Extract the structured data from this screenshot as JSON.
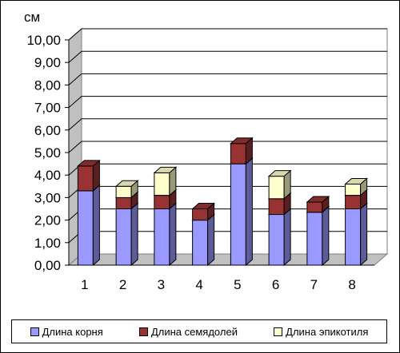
{
  "chart_data": {
    "type": "bar",
    "stacked": true,
    "three_d": true,
    "unit_label": "см",
    "categories": [
      "1",
      "2",
      "3",
      "4",
      "5",
      "6",
      "7",
      "8"
    ],
    "series": [
      {
        "name": "Длина корня",
        "color": "#9999ff",
        "values": [
          3.3,
          2.5,
          2.5,
          2.0,
          4.5,
          2.25,
          2.35,
          2.5
        ]
      },
      {
        "name": "Длина семядолей",
        "color": "#993333",
        "values": [
          1.1,
          0.5,
          0.6,
          0.5,
          0.9,
          0.7,
          0.45,
          0.6
        ]
      },
      {
        "name": "Длина эпикотиля",
        "color": "#ffffcc",
        "values": [
          0.0,
          0.5,
          1.0,
          0.0,
          0.0,
          1.0,
          0.0,
          0.5
        ]
      }
    ],
    "y_ticks": [
      "0,00",
      "1,00",
      "2,00",
      "3,00",
      "4,00",
      "5,00",
      "6,00",
      "7,00",
      "8,00",
      "9,00",
      "10,00"
    ],
    "ylim": [
      0,
      10
    ],
    "grid": true,
    "legend_position": "bottom"
  }
}
